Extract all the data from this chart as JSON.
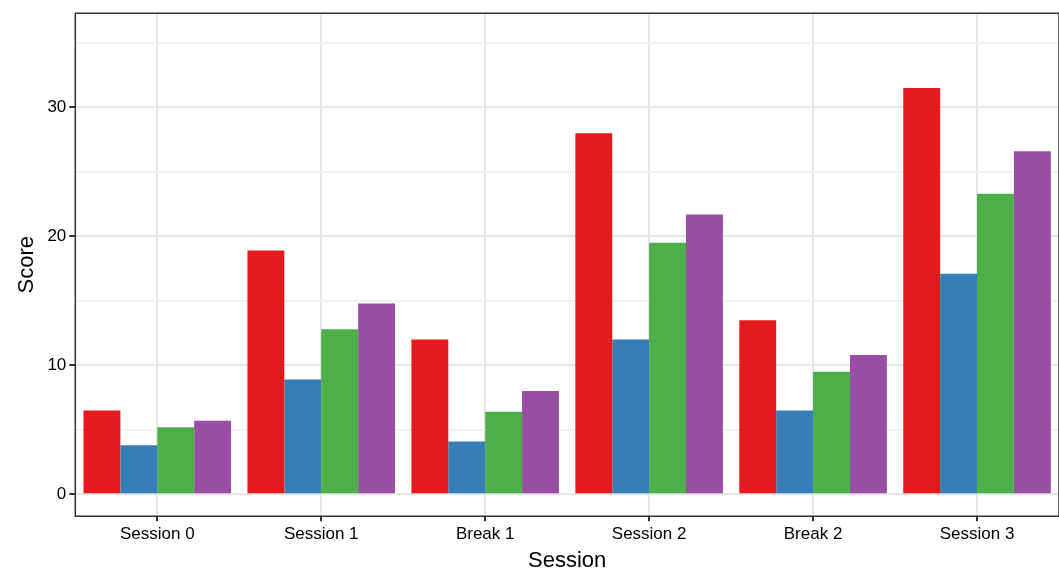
{
  "chart_data": {
    "type": "bar",
    "xlabel": "Session",
    "ylabel": "Score",
    "categories": [
      "Session 0",
      "Session 1",
      "Break 1",
      "Session 2",
      "Break 2",
      "Session 3"
    ],
    "series": [
      {
        "color": "#e41a1c",
        "values": [
          6.5,
          18.9,
          12.0,
          28.0,
          13.5,
          31.5
        ]
      },
      {
        "color": "#377eb8",
        "values": [
          3.8,
          8.9,
          4.1,
          12.0,
          6.5,
          17.1
        ]
      },
      {
        "color": "#4daf4a",
        "values": [
          5.2,
          12.8,
          6.4,
          19.5,
          9.5,
          23.3
        ]
      },
      {
        "color": "#984ea3",
        "values": [
          5.7,
          14.8,
          8.0,
          21.7,
          10.8,
          26.6
        ]
      }
    ],
    "ylim": [
      -1.7,
      37.3
    ],
    "yticks": [
      0,
      {
        "value": 5,
        "label": null
      },
      10,
      {
        "value": 15,
        "label": null
      },
      20,
      {
        "value": 25,
        "label": null
      },
      30,
      {
        "value": 35,
        "label": null
      }
    ],
    "grid": true,
    "legend": false
  }
}
